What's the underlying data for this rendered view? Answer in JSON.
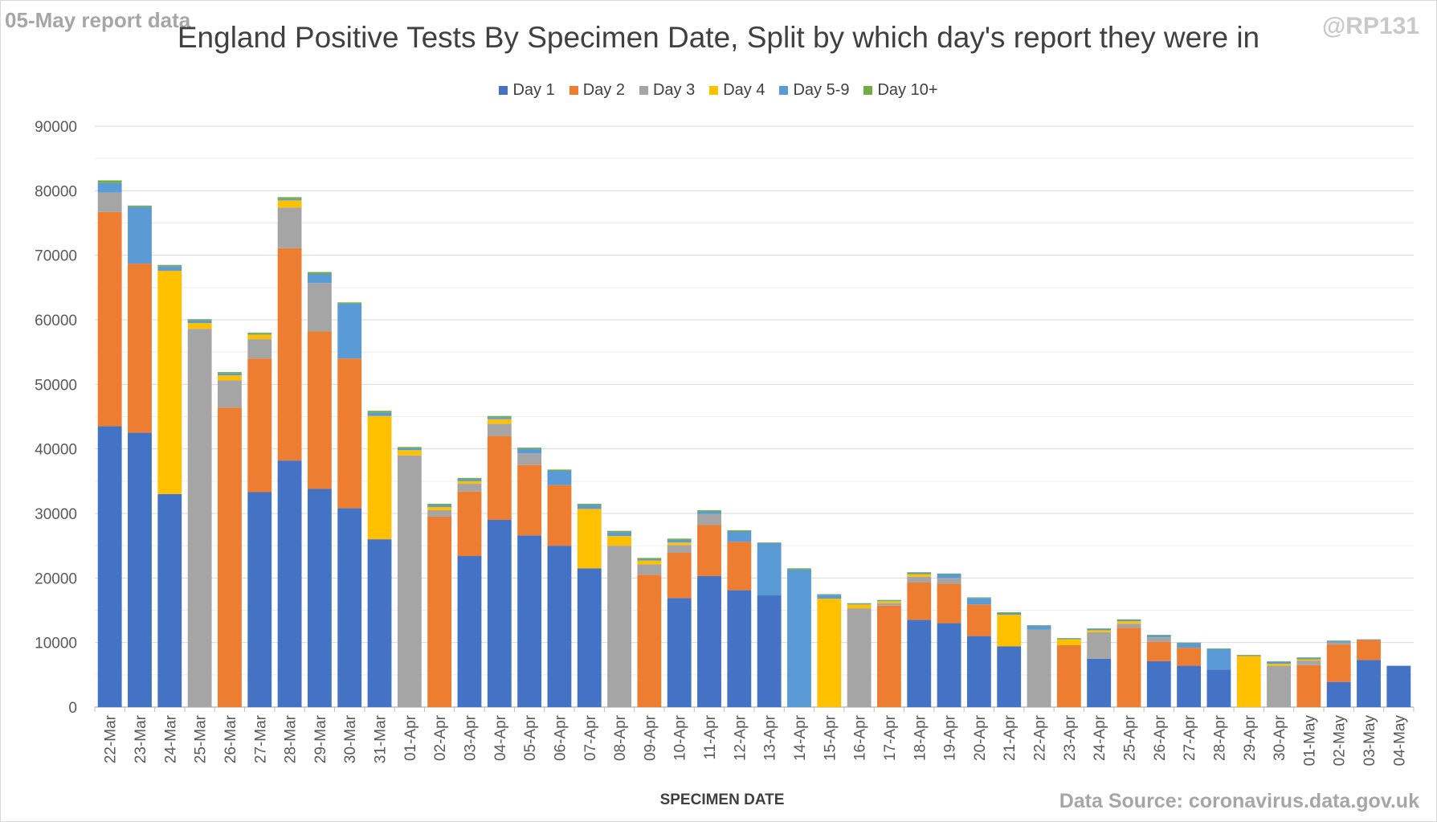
{
  "header": {
    "report_label": "05-May report data",
    "handle": "@RP131"
  },
  "footer": {
    "source": "Data Source: coronavirus.data.gov.uk"
  },
  "chart_data": {
    "type": "bar",
    "stacked": true,
    "title": "England Positive Tests By Specimen Date, Split by which day's report they were in",
    "xlabel": "SPECIMEN DATE",
    "ylabel": "",
    "ylim": [
      0,
      90000
    ],
    "yticks": [
      0,
      10000,
      20000,
      30000,
      40000,
      50000,
      60000,
      70000,
      80000,
      90000
    ],
    "grid": true,
    "legend_position": "top",
    "categories": [
      "22-Mar",
      "23-Mar",
      "24-Mar",
      "25-Mar",
      "26-Mar",
      "27-Mar",
      "28-Mar",
      "29-Mar",
      "30-Mar",
      "31-Mar",
      "01-Apr",
      "02-Apr",
      "03-Apr",
      "04-Apr",
      "05-Apr",
      "06-Apr",
      "07-Apr",
      "08-Apr",
      "09-Apr",
      "10-Apr",
      "11-Apr",
      "12-Apr",
      "13-Apr",
      "14-Apr",
      "15-Apr",
      "16-Apr",
      "17-Apr",
      "18-Apr",
      "19-Apr",
      "20-Apr",
      "21-Apr",
      "22-Apr",
      "23-Apr",
      "24-Apr",
      "25-Apr",
      "26-Apr",
      "27-Apr",
      "28-Apr",
      "29-Apr",
      "30-Apr",
      "01-May",
      "02-May",
      "03-May",
      "04-May"
    ],
    "series": [
      {
        "name": "Day 1",
        "color": "#4472c4",
        "values": [
          43500,
          42500,
          33000,
          0,
          0,
          33300,
          38200,
          33800,
          30800,
          26000,
          0,
          0,
          23400,
          29000,
          26600,
          25000,
          21500,
          0,
          0,
          16900,
          20300,
          18100,
          17300,
          0,
          0,
          0,
          0,
          13500,
          13000,
          11000,
          9400,
          0,
          0,
          7500,
          0,
          7100,
          6400,
          5800,
          0,
          0,
          0,
          3900,
          7300,
          6400
        ]
      },
      {
        "name": "Day 2",
        "color": "#ed7d31",
        "values": [
          33200,
          26200,
          0,
          0,
          46400,
          20700,
          32900,
          24400,
          23200,
          0,
          0,
          29500,
          10000,
          13000,
          10900,
          9400,
          0,
          0,
          20500,
          7000,
          7900,
          7500,
          0,
          0,
          0,
          0,
          15700,
          5800,
          6100,
          4900,
          0,
          0,
          9600,
          0,
          12300,
          3000,
          2800,
          0,
          0,
          0,
          6500,
          5800,
          3100,
          0
        ]
      },
      {
        "name": "Day 3",
        "color": "#a5a5a5",
        "values": [
          3000,
          0,
          0,
          58600,
          4200,
          3000,
          6300,
          7500,
          0,
          0,
          39000,
          1000,
          1200,
          1900,
          1800,
          0,
          0,
          25000,
          1600,
          1200,
          1700,
          0,
          0,
          0,
          0,
          15300,
          400,
          900,
          900,
          0,
          0,
          12000,
          0,
          4100,
          600,
          700,
          0,
          0,
          0,
          6400,
          700,
          300,
          0,
          0
        ]
      },
      {
        "name": "Day 4",
        "color": "#ffc000",
        "values": [
          0,
          0,
          34600,
          900,
          800,
          700,
          1100,
          0,
          0,
          19100,
          800,
          500,
          400,
          700,
          0,
          0,
          9200,
          1500,
          600,
          400,
          0,
          0,
          0,
          0,
          16800,
          600,
          300,
          400,
          0,
          0,
          4900,
          0,
          900,
          300,
          400,
          0,
          0,
          0,
          7900,
          300,
          200,
          0,
          0,
          0
        ]
      },
      {
        "name": "Day 5-9",
        "color": "#5b9bd5",
        "values": [
          1500,
          8800,
          700,
          400,
          300,
          100,
          200,
          1400,
          8500,
          500,
          300,
          300,
          300,
          300,
          700,
          2200,
          600,
          600,
          200,
          400,
          400,
          1600,
          8100,
          21300,
          600,
          100,
          100,
          200,
          600,
          1000,
          200,
          600,
          100,
          200,
          200,
          300,
          700,
          3200,
          100,
          300,
          200,
          200,
          100,
          0
        ]
      },
      {
        "name": "Day 10+",
        "color": "#70ad47",
        "values": [
          400,
          200,
          200,
          200,
          200,
          200,
          300,
          300,
          200,
          300,
          200,
          200,
          200,
          200,
          200,
          200,
          200,
          200,
          200,
          200,
          200,
          200,
          100,
          200,
          100,
          100,
          100,
          100,
          100,
          100,
          200,
          100,
          100,
          100,
          100,
          100,
          100,
          100,
          100,
          100,
          100,
          100,
          0,
          0
        ]
      }
    ]
  }
}
